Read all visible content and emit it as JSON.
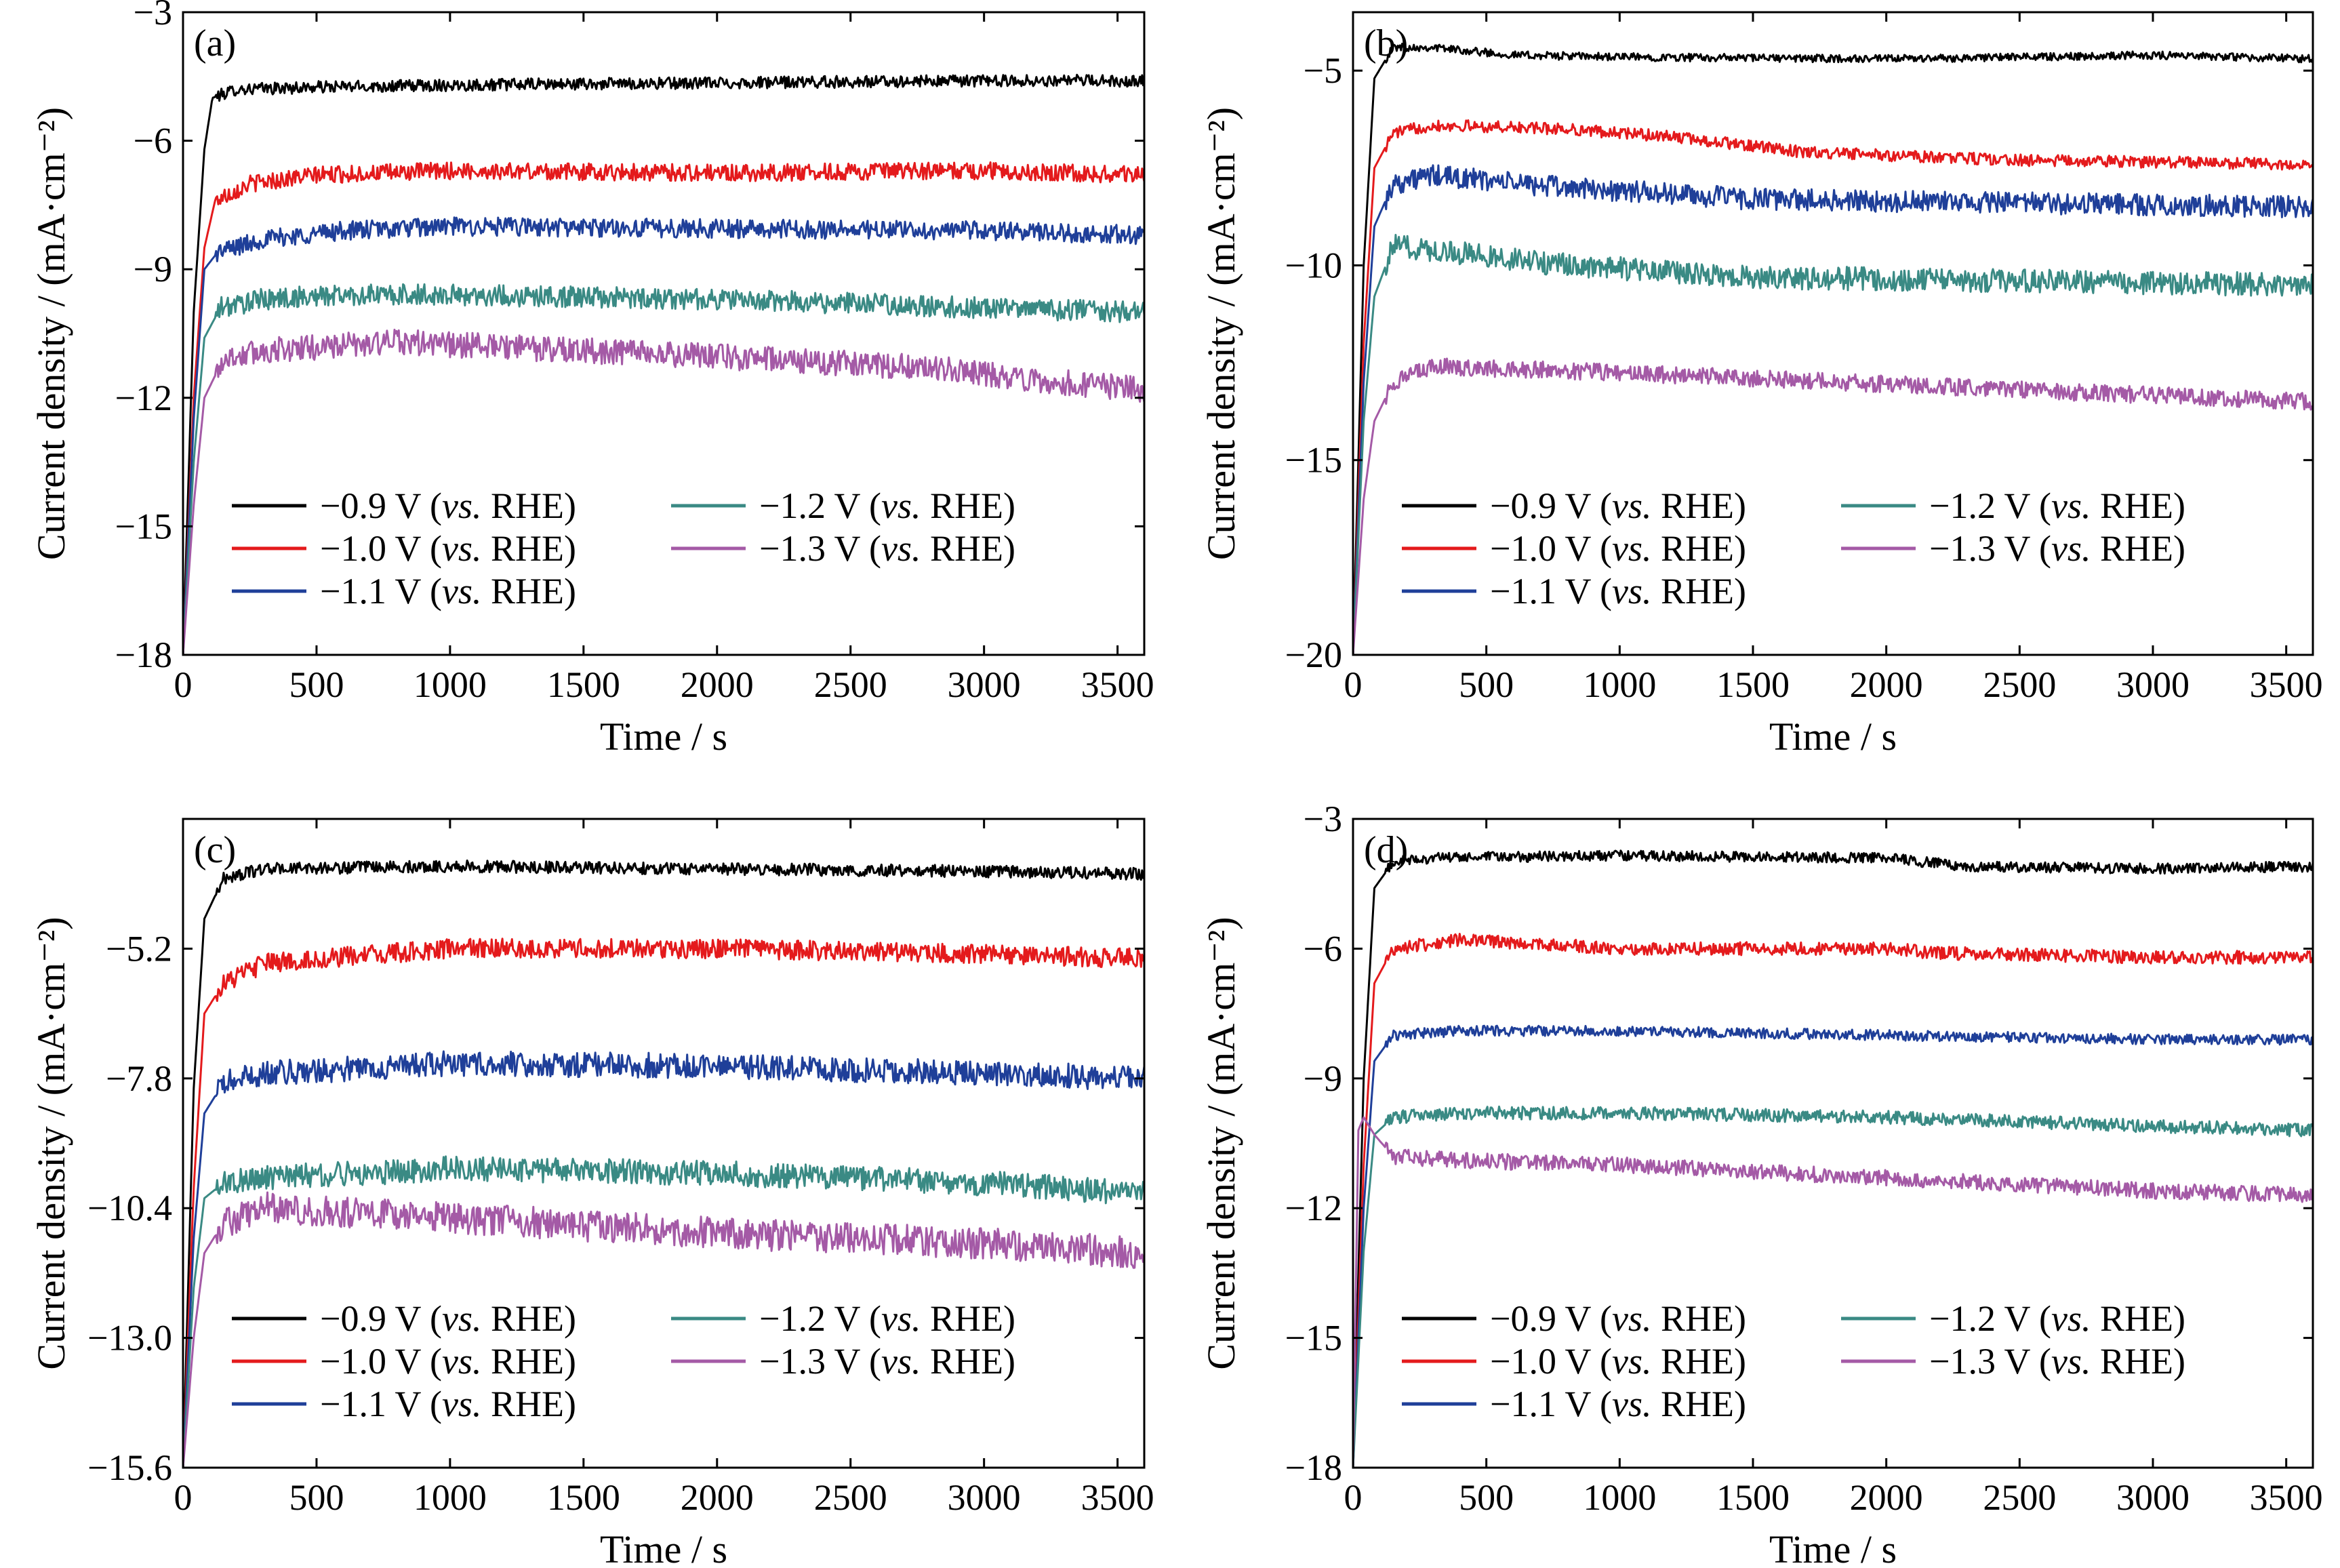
{
  "chart_data": [
    {
      "panel_label": "(a)",
      "type": "line",
      "xlabel": "Time / s",
      "ylabel": "Current density / (mA·cm⁻²)",
      "xlim": [
        0,
        3600
      ],
      "ylim": [
        -18,
        -3
      ],
      "xticks": [
        0,
        500,
        1000,
        1500,
        2000,
        2500,
        3000,
        3500
      ],
      "xtick_labels": [
        "0",
        "500",
        "1000",
        "1500",
        "2000",
        "2500",
        "3000",
        "3500"
      ],
      "yticks": [
        -18,
        -15,
        -12,
        -9,
        -6,
        -3
      ],
      "ytick_labels": [
        "−18",
        "−15",
        "−12",
        "−9",
        "−6",
        "−3"
      ],
      "series": [
        {
          "name": "−0.9 V (vs. RHE)",
          "color": "#000000",
          "noise": 0.14,
          "x": [
            0,
            40,
            80,
            110,
            200,
            500,
            1000,
            2000,
            3000,
            3600
          ],
          "y": [
            -18,
            -10,
            -6.2,
            -5.0,
            -4.8,
            -4.75,
            -4.7,
            -4.65,
            -4.6,
            -4.6
          ]
        },
        {
          "name": "−1.0 V (vs. RHE)",
          "color": "#e41a1c",
          "noise": 0.2,
          "x": [
            0,
            40,
            80,
            120,
            250,
            500,
            1000,
            2000,
            3000,
            3600
          ],
          "y": [
            -18,
            -12,
            -8.5,
            -7.4,
            -7.0,
            -6.8,
            -6.7,
            -6.75,
            -6.7,
            -6.8
          ]
        },
        {
          "name": "−1.1 V (vs. RHE)",
          "color": "#1f3f99",
          "noise": 0.22,
          "x": [
            0,
            40,
            80,
            130,
            300,
            600,
            1000,
            2000,
            3000,
            3600
          ],
          "y": [
            -18,
            -12.5,
            -9.0,
            -8.6,
            -8.3,
            -8.1,
            -8.0,
            -8.05,
            -8.1,
            -8.2
          ]
        },
        {
          "name": "−1.2 V (vs. RHE)",
          "color": "#3a8a84",
          "noise": 0.25,
          "x": [
            0,
            40,
            80,
            140,
            300,
            600,
            1000,
            2000,
            3000,
            3600
          ],
          "y": [
            -18,
            -13.5,
            -10.6,
            -9.9,
            -9.7,
            -9.6,
            -9.6,
            -9.7,
            -9.9,
            -10.0
          ]
        },
        {
          "name": "−1.3 V (vs. RHE)",
          "color": "#a45aa6",
          "noise": 0.3,
          "x": [
            0,
            40,
            80,
            150,
            300,
            800,
            1500,
            2200,
            2800,
            3200,
            3600
          ],
          "y": [
            -18,
            -14.5,
            -12.0,
            -11.1,
            -10.9,
            -10.7,
            -10.9,
            -11.1,
            -11.3,
            -11.6,
            -11.8
          ]
        }
      ],
      "legend_placement": "lower-left"
    },
    {
      "panel_label": "(b)",
      "type": "line",
      "xlabel": "Time / s",
      "ylabel": "Current density / (mA·cm⁻²)",
      "xlim": [
        0,
        3600
      ],
      "ylim": [
        -20,
        -3.5
      ],
      "xticks": [
        0,
        500,
        1000,
        1500,
        2000,
        2500,
        3000,
        3500
      ],
      "xtick_labels": [
        "0",
        "500",
        "1000",
        "1500",
        "2000",
        "2500",
        "3000",
        "3500"
      ],
      "yticks": [
        -20,
        -15,
        -10,
        -5
      ],
      "ytick_labels": [
        "−20",
        "−15",
        "−10",
        "−5"
      ],
      "series": [
        {
          "name": "−0.9 V (vs. RHE)",
          "color": "#000000",
          "noise": 0.1,
          "x": [
            0,
            40,
            80,
            150,
            300,
            600,
            1000,
            2000,
            3000,
            3600
          ],
          "y": [
            -20,
            -10,
            -5.2,
            -4.4,
            -4.4,
            -4.6,
            -4.65,
            -4.7,
            -4.6,
            -4.7
          ]
        },
        {
          "name": "−1.0 V (vs. RHE)",
          "color": "#e41a1c",
          "noise": 0.15,
          "x": [
            0,
            40,
            80,
            150,
            300,
            800,
            1200,
            1700,
            2500,
            3600
          ],
          "y": [
            -20,
            -12,
            -7.5,
            -6.6,
            -6.4,
            -6.5,
            -6.7,
            -7.1,
            -7.3,
            -7.4
          ]
        },
        {
          "name": "−1.1 V (vs. RHE)",
          "color": "#1f3f99",
          "noise": 0.28,
          "x": [
            0,
            40,
            80,
            150,
            300,
            800,
            1500,
            2500,
            3600
          ],
          "y": [
            -20,
            -13,
            -9.0,
            -7.9,
            -7.7,
            -8.0,
            -8.3,
            -8.4,
            -8.5
          ]
        },
        {
          "name": "−1.2 V (vs. RHE)",
          "color": "#3a8a84",
          "noise": 0.3,
          "x": [
            0,
            40,
            80,
            150,
            300,
            800,
            1500,
            2500,
            3600
          ],
          "y": [
            -20,
            -14,
            -10.8,
            -9.5,
            -9.6,
            -10.0,
            -10.3,
            -10.4,
            -10.5
          ]
        },
        {
          "name": "−1.3 V (vs. RHE)",
          "color": "#a45aa6",
          "noise": 0.22,
          "x": [
            0,
            40,
            80,
            150,
            300,
            800,
            1500,
            2500,
            3600
          ],
          "y": [
            -20,
            -16,
            -14.0,
            -13.0,
            -12.6,
            -12.7,
            -12.9,
            -13.2,
            -13.5
          ]
        }
      ],
      "legend_placement": "lower-left"
    },
    {
      "panel_label": "(c)",
      "type": "line",
      "xlabel": "Time / s",
      "ylabel": "Current density / (mA·cm⁻²)",
      "xlim": [
        0,
        3600
      ],
      "ylim": [
        -15.6,
        -2.6
      ],
      "xticks": [
        0,
        500,
        1000,
        1500,
        2000,
        2500,
        3000,
        3500
      ],
      "xtick_labels": [
        "0",
        "500",
        "1000",
        "1500",
        "2000",
        "2500",
        "3000",
        "3500"
      ],
      "yticks": [
        -15.6,
        -13.0,
        -10.4,
        -7.8,
        -5.2
      ],
      "ytick_labels": [
        "−15.6",
        "−13.0",
        "−10.4",
        "−7.8",
        "−5.2"
      ],
      "series": [
        {
          "name": "−0.9 V (vs. RHE)",
          "color": "#000000",
          "noise": 0.12,
          "x": [
            0,
            40,
            80,
            150,
            300,
            1000,
            2000,
            3000,
            3600
          ],
          "y": [
            -15.6,
            -8,
            -4.6,
            -3.8,
            -3.6,
            -3.55,
            -3.6,
            -3.65,
            -3.7
          ]
        },
        {
          "name": "−1.0 V (vs. RHE)",
          "color": "#e41a1c",
          "noise": 0.2,
          "x": [
            0,
            40,
            80,
            150,
            300,
            1000,
            2000,
            3000,
            3600
          ],
          "y": [
            -15.6,
            -10,
            -6.5,
            -5.9,
            -5.5,
            -5.2,
            -5.2,
            -5.3,
            -5.4
          ]
        },
        {
          "name": "−1.1 V (vs. RHE)",
          "color": "#1f3f99",
          "noise": 0.25,
          "x": [
            0,
            40,
            80,
            150,
            300,
            1000,
            2000,
            3000,
            3600
          ],
          "y": [
            -15.6,
            -11,
            -8.5,
            -7.9,
            -7.7,
            -7.5,
            -7.55,
            -7.7,
            -7.8
          ]
        },
        {
          "name": "−1.2 V (vs. RHE)",
          "color": "#3a8a84",
          "noise": 0.25,
          "x": [
            0,
            40,
            80,
            150,
            300,
            1000,
            2000,
            3000,
            3600
          ],
          "y": [
            -15.6,
            -12,
            -10.2,
            -9.9,
            -9.8,
            -9.6,
            -9.7,
            -9.9,
            -10.1
          ]
        },
        {
          "name": "−1.3 V (vs. RHE)",
          "color": "#a45aa6",
          "noise": 0.32,
          "x": [
            0,
            40,
            80,
            150,
            300,
            1000,
            2000,
            3000,
            3600
          ],
          "y": [
            -15.6,
            -13,
            -11.3,
            -10.7,
            -10.4,
            -10.6,
            -10.9,
            -11.1,
            -11.3
          ]
        }
      ],
      "legend_placement": "lower-left"
    },
    {
      "panel_label": "(d)",
      "type": "line",
      "xlabel": "Time / s",
      "ylabel": "Current density / (mA·cm⁻²)",
      "xlim": [
        0,
        3600
      ],
      "ylim": [
        -18,
        -3
      ],
      "xticks": [
        0,
        500,
        1000,
        1500,
        2000,
        2500,
        3000,
        3500
      ],
      "xtick_labels": [
        "0",
        "500",
        "1000",
        "1500",
        "2000",
        "2500",
        "3000",
        "3500"
      ],
      "yticks": [
        -18,
        -15,
        -12,
        -9,
        -6,
        -3
      ],
      "ytick_labels": [
        "−18",
        "−15",
        "−12",
        "−9",
        "−6",
        "−3"
      ],
      "series": [
        {
          "name": "−0.9 V (vs. RHE)",
          "color": "#000000",
          "noise": 0.12,
          "x": [
            0,
            40,
            80,
            150,
            300,
            1000,
            2000,
            2300,
            3000,
            3600
          ],
          "y": [
            -18,
            -9,
            -4.6,
            -4.0,
            -3.9,
            -3.85,
            -3.9,
            -4.1,
            -4.15,
            -4.1
          ]
        },
        {
          "name": "−1.0 V (vs. RHE)",
          "color": "#e41a1c",
          "noise": 0.15,
          "x": [
            0,
            40,
            80,
            150,
            400,
            1000,
            2000,
            2200,
            3000,
            3600
          ],
          "y": [
            -18,
            -11,
            -6.8,
            -6.0,
            -5.8,
            -6.0,
            -6.0,
            -6.1,
            -6.2,
            -6.2
          ]
        },
        {
          "name": "−1.1 V (vs. RHE)",
          "color": "#1f3f99",
          "noise": 0.12,
          "x": [
            0,
            40,
            80,
            150,
            400,
            1000,
            2000,
            3000,
            3600
          ],
          "y": [
            -18,
            -12,
            -8.6,
            -8.0,
            -7.9,
            -7.9,
            -8.0,
            -8.1,
            -8.1
          ]
        },
        {
          "name": "−1.2 V (vs. RHE)",
          "color": "#3a8a84",
          "noise": 0.15,
          "x": [
            0,
            40,
            80,
            150,
            400,
            1000,
            2000,
            3000,
            3600
          ],
          "y": [
            -18,
            -13,
            -10.3,
            -9.9,
            -9.8,
            -9.8,
            -9.9,
            -10.1,
            -10.2
          ]
        },
        {
          "name": "−1.3 V (vs. RHE)",
          "color": "#a45aa6",
          "noise": 0.18,
          "x": [
            0,
            20,
            40,
            80,
            150,
            400,
            1000,
            2000,
            3000,
            3600
          ],
          "y": [
            -18,
            -10.2,
            -9.9,
            -10.3,
            -10.8,
            -10.9,
            -11.0,
            -11.3,
            -11.6,
            -11.7
          ]
        }
      ],
      "legend_placement": "lower-left"
    }
  ]
}
